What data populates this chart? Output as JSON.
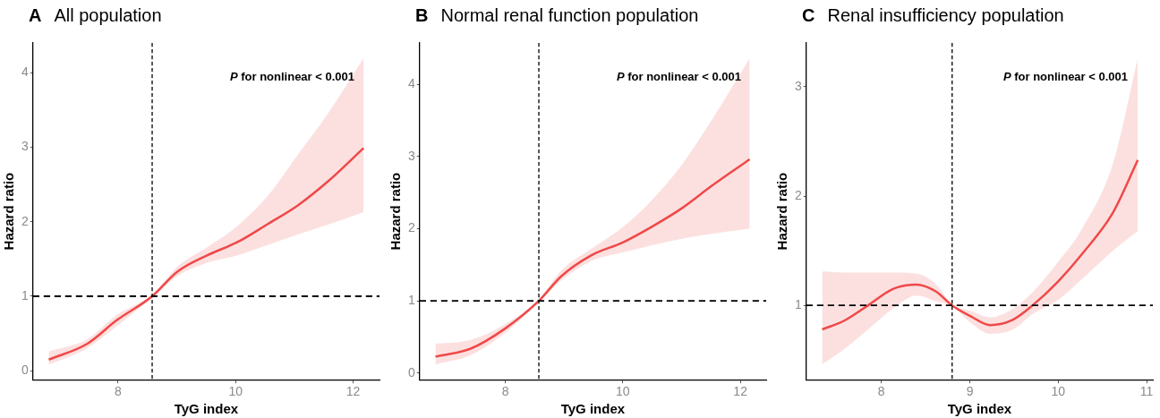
{
  "chart_data": [
    {
      "type": "line",
      "title": "A All population",
      "xlabel": "TyG index",
      "ylabel": "Hazard ratio",
      "annotations": [
        "P for nonlinear < 0.001"
      ],
      "xlim": [
        6.55,
        12.45
      ],
      "xticks": [
        8,
        10,
        12
      ],
      "ylim": [
        -0.12,
        4.4
      ],
      "yticks": [
        0,
        1,
        2,
        3,
        4
      ],
      "grid": false,
      "legend": false,
      "line_style": "solid",
      "marker": "none",
      "series": [
        {
          "color": "#f04848",
          "x": [
            6.82,
            7.47,
            7.98,
            8.58,
            9.01,
            9.52,
            10.04,
            10.55,
            11.06,
            11.57,
            12.18
          ],
          "values": [
            0.15,
            0.36,
            0.68,
            1.0,
            1.33,
            1.55,
            1.73,
            1.97,
            2.22,
            2.54,
            2.99
          ],
          "lower": [
            0.08,
            0.3,
            0.6,
            0.98,
            1.27,
            1.45,
            1.55,
            1.69,
            1.83,
            1.96,
            2.13
          ],
          "upper": [
            0.26,
            0.42,
            0.75,
            1.02,
            1.4,
            1.66,
            1.95,
            2.35,
            2.9,
            3.45,
            4.2
          ]
        }
      ],
      "ref_lines": [
        {
          "axis": "x",
          "value": 8.58,
          "line_style": "dashed"
        },
        {
          "axis": "y",
          "value": 1,
          "line_style": "dashed"
        }
      ]
    },
    {
      "type": "line",
      "title": "B Normal renal function population",
      "xlabel": "TyG index",
      "ylabel": "Hazard ratio",
      "annotations": [
        "P for nonlinear < 0.001"
      ],
      "xlim": [
        6.54,
        12.44
      ],
      "xticks": [
        8,
        10,
        12
      ],
      "ylim": [
        -0.09,
        4.57
      ],
      "yticks": [
        0,
        1,
        2,
        3,
        4
      ],
      "grid": false,
      "legend": false,
      "line_style": "solid",
      "marker": "none",
      "series": [
        {
          "color": "#f04848",
          "x": [
            6.81,
            7.41,
            8.0,
            8.57,
            8.95,
            9.46,
            10.0,
            10.5,
            11.0,
            11.51,
            12.16
          ],
          "values": [
            0.23,
            0.34,
            0.62,
            1.0,
            1.34,
            1.63,
            1.81,
            2.03,
            2.28,
            2.59,
            2.96
          ],
          "lower": [
            0.12,
            0.25,
            0.56,
            0.98,
            1.28,
            1.55,
            1.67,
            1.77,
            1.86,
            1.93,
            2.0
          ],
          "upper": [
            0.41,
            0.46,
            0.68,
            1.02,
            1.42,
            1.72,
            2.02,
            2.4,
            2.88,
            3.5,
            4.36
          ]
        }
      ],
      "ref_lines": [
        {
          "axis": "x",
          "value": 8.57,
          "line_style": "dashed"
        },
        {
          "axis": "y",
          "value": 1,
          "line_style": "dashed"
        }
      ]
    },
    {
      "type": "line",
      "title": "C Renal insufficiency population",
      "xlabel": "TyG index",
      "ylabel": "Hazard ratio",
      "annotations": [
        "P for nonlinear < 0.001"
      ],
      "xlim": [
        7.15,
        11.07
      ],
      "xticks": [
        8,
        9,
        10,
        11
      ],
      "ylim": [
        0.32,
        3.4
      ],
      "yticks": [
        1,
        2,
        3
      ],
      "grid": false,
      "legend": false,
      "line_style": "solid",
      "marker": "none",
      "series": [
        {
          "color": "#f04848",
          "x": [
            7.33,
            7.58,
            7.85,
            8.13,
            8.4,
            8.61,
            8.8,
            9.01,
            9.23,
            9.49,
            9.71,
            10.0,
            10.27,
            10.62,
            10.9
          ],
          "values": [
            0.78,
            0.86,
            1.0,
            1.15,
            1.19,
            1.13,
            1.0,
            0.9,
            0.82,
            0.87,
            1.0,
            1.22,
            1.47,
            1.85,
            2.33
          ],
          "lower": [
            0.46,
            0.6,
            0.78,
            0.97,
            1.09,
            1.04,
            0.99,
            0.84,
            0.74,
            0.78,
            0.92,
            1.05,
            1.24,
            1.5,
            1.68
          ],
          "upper": [
            1.31,
            1.3,
            1.3,
            1.3,
            1.29,
            1.2,
            1.01,
            0.95,
            0.89,
            0.97,
            1.12,
            1.4,
            1.7,
            2.3,
            3.26
          ]
        }
      ],
      "ref_lines": [
        {
          "axis": "x",
          "value": 8.8,
          "line_style": "dashed"
        },
        {
          "axis": "y",
          "value": 1,
          "line_style": "dashed"
        }
      ]
    }
  ]
}
